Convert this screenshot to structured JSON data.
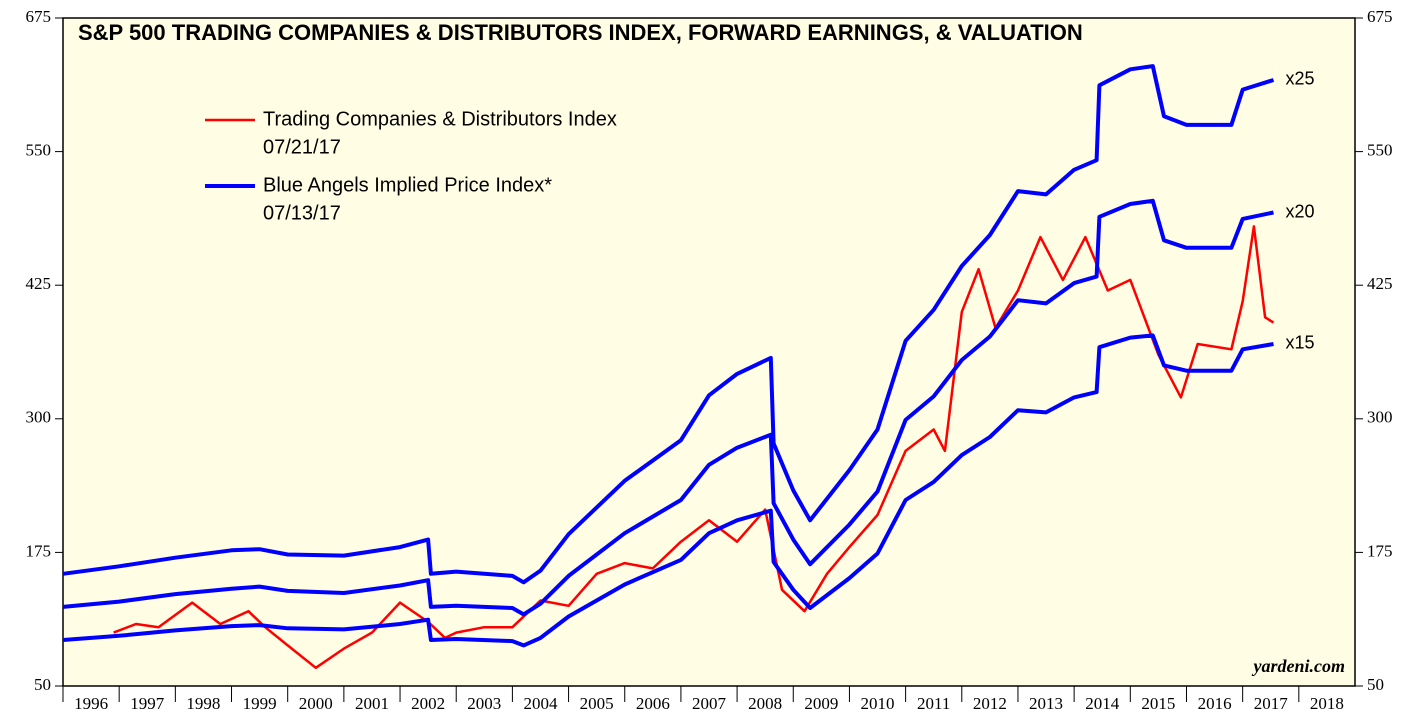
{
  "chart_data": {
    "type": "line",
    "title": "S&P 500 TRADING COMPANIES & DISTRIBUTORS INDEX, FORWARD EARNINGS, & VALUATION",
    "source": "yardeni.com",
    "xlim": [
      1996,
      2019
    ],
    "xticks": [
      1996,
      1997,
      1998,
      1999,
      2000,
      2001,
      2002,
      2003,
      2004,
      2005,
      2006,
      2007,
      2008,
      2009,
      2010,
      2011,
      2012,
      2013,
      2014,
      2015,
      2016,
      2017,
      2018
    ],
    "ylim": [
      50,
      675
    ],
    "yticks": [
      50,
      175,
      300,
      425,
      550,
      675
    ],
    "x": [
      1996,
      1997,
      1998,
      1999,
      1999.5,
      2000,
      2001,
      2002,
      2002.5,
      2002.55,
      2003,
      2004,
      2004.2,
      2004.5,
      2005,
      2006,
      2007,
      2007.5,
      2008,
      2008.6,
      2008.65,
      2009,
      2009.3,
      2010,
      2010.5,
      2011,
      2011.5,
      2012,
      2012.5,
      2013,
      2013.5,
      2014,
      2014.4,
      2014.45,
      2015,
      2015.4,
      2015.6,
      2016,
      2016.8,
      2017,
      2017.55
    ],
    "series": [
      {
        "name": "Trading Companies & Distributors Index",
        "date": "07/21/17",
        "color": "#ff0000",
        "legend": true,
        "x": [
          1996.9,
          1997.3,
          1997.7,
          1998.3,
          1998.8,
          1999.3,
          1999.6,
          2000.0,
          2000.5,
          2001.0,
          2001.5,
          2002.0,
          2002.5,
          2002.8,
          2003.0,
          2003.5,
          2004.0,
          2004.5,
          2005.0,
          2005.5,
          2006.0,
          2006.5,
          2007.0,
          2007.5,
          2008.0,
          2008.5,
          2008.8,
          2009.2,
          2009.6,
          2010.0,
          2010.5,
          2011.0,
          2011.5,
          2011.7,
          2012.0,
          2012.3,
          2012.6,
          2013.0,
          2013.4,
          2013.8,
          2014.2,
          2014.6,
          2015.0,
          2015.5,
          2015.9,
          2016.2,
          2016.8,
          2017.0,
          2017.2,
          2017.4,
          2017.55
        ],
        "values": [
          100,
          108,
          105,
          128,
          108,
          120,
          105,
          88,
          67,
          85,
          100,
          128,
          110,
          95,
          100,
          105,
          105,
          130,
          125,
          155,
          165,
          160,
          185,
          205,
          185,
          215,
          140,
          120,
          155,
          180,
          210,
          270,
          290,
          270,
          400,
          440,
          385,
          420,
          470,
          430,
          470,
          420,
          430,
          360,
          320,
          370,
          365,
          410,
          480,
          395,
          390
        ]
      },
      {
        "name": "Blue Angels Implied Price Index*",
        "date": "07/13/17",
        "color": "#0000ff",
        "legend": true,
        "label": "x25",
        "values": [
          155,
          162,
          170,
          177,
          178,
          173,
          172,
          180,
          187,
          155,
          157,
          153,
          147,
          158,
          192,
          242,
          280,
          322,
          342,
          357,
          277,
          233,
          205,
          252,
          290,
          373,
          402,
          443,
          472,
          513,
          510,
          533,
          542,
          612,
          627,
          630,
          583,
          575,
          575,
          608,
          617
        ]
      },
      {
        "color": "#0000ff",
        "label": "x20",
        "values": [
          124,
          129,
          136,
          141,
          143,
          139,
          137,
          144,
          149,
          124,
          125,
          123,
          117,
          127,
          153,
          193,
          224,
          257,
          273,
          285,
          221,
          187,
          164,
          201,
          232,
          299,
          321,
          355,
          377,
          411,
          408,
          427,
          433,
          489,
          501,
          504,
          467,
          460,
          460,
          487,
          493
        ]
      },
      {
        "color": "#0000ff",
        "label": "x15",
        "values": [
          93,
          97,
          102,
          106,
          107,
          104,
          103,
          108,
          112,
          93,
          94,
          92,
          88,
          95,
          115,
          145,
          168,
          193,
          205,
          214,
          166,
          140,
          123,
          151,
          174,
          224,
          241,
          266,
          283,
          308,
          306,
          320,
          325,
          367,
          376,
          378,
          350,
          345,
          345,
          365,
          370
        ]
      }
    ]
  }
}
